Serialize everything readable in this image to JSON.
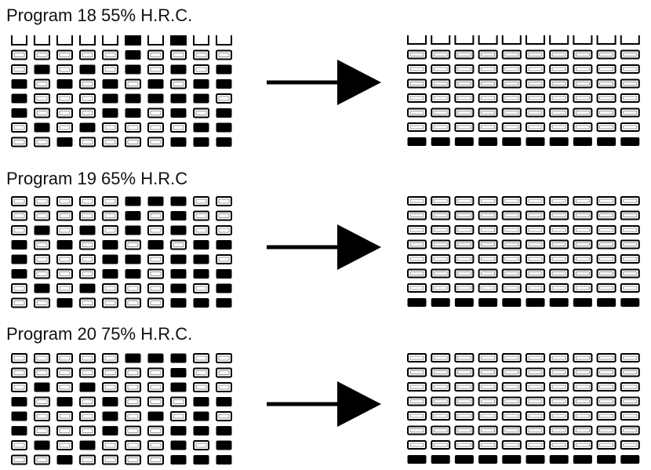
{
  "colors": {
    "filled": "#000000",
    "outline": "#000000",
    "background": "#ffffff"
  },
  "programs": [
    {
      "title": "Program 18 55% H.R.C.",
      "first_row_open_top": true,
      "before": [
        "0000010100",
        "0000010000",
        "0101010101",
        "1010101011",
        "1000111110",
        "1000110101",
        "0101000011",
        "0010000111"
      ],
      "after": [
        "0000000000",
        "0000000000",
        "0000000000",
        "0000000000",
        "0000000000",
        "0000000000",
        "0000000000",
        "1111111111"
      ]
    },
    {
      "title": "Program 19 65% H.R.C",
      "first_row_open_top": false,
      "before": [
        "0000011100",
        "0000010100",
        "0101010100",
        "1010101011",
        "1000110110",
        "1000110111",
        "0101000101",
        "0010000111"
      ],
      "after": [
        "0000000000",
        "0000000000",
        "0000000000",
        "0000000000",
        "0000000000",
        "0000000000",
        "0000000000",
        "1111111111"
      ]
    },
    {
      "title": "Program 20 75% H.R.C.",
      "first_row_open_top": false,
      "before": [
        "0000011100",
        "0000000100",
        "0101000100",
        "1010100011",
        "1000101010",
        "1000100111",
        "0101000101",
        "0010000111"
      ],
      "after": [
        "0000000000",
        "0000000000",
        "0000000000",
        "0000000000",
        "0000000000",
        "0000000000",
        "0000000000",
        "1111111111"
      ]
    }
  ]
}
